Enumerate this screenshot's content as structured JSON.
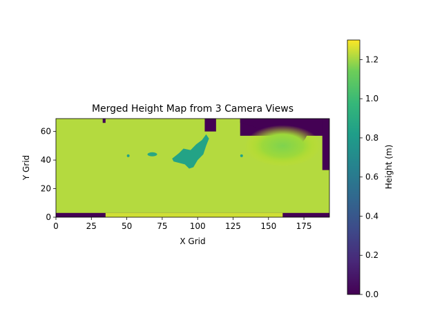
{
  "chart_data": {
    "type": "heatmap",
    "title": "Merged Height Map from 3 Camera Views",
    "xlabel": "X Grid",
    "ylabel": "Y Grid",
    "xlim": [
      0,
      193
    ],
    "ylim": [
      0,
      69
    ],
    "x_ticks": [
      0,
      25,
      50,
      75,
      100,
      125,
      150,
      175
    ],
    "y_ticks": [
      0,
      20,
      40,
      60
    ],
    "colorbar": {
      "label": "Height (m)",
      "colormap": "viridis",
      "vmin": 0.0,
      "vmax": 1.3,
      "ticks": [
        "0.0",
        "0.2",
        "0.4",
        "0.6",
        "0.8",
        "1.0",
        "1.2"
      ]
    },
    "regions": [
      {
        "name": "background",
        "height_m": 1.22
      },
      {
        "name": "bottom-strip",
        "x": [
          0,
          193
        ],
        "y": [
          0,
          3
        ],
        "height_m": 0.0
      },
      {
        "name": "bottom-strip-raised",
        "x": [
          35,
          160
        ],
        "y": [
          0,
          3
        ],
        "height_m": 1.25
      },
      {
        "name": "top-left-gap",
        "x": [
          33,
          35
        ],
        "y": [
          66,
          69
        ],
        "height_m": 0.0
      },
      {
        "name": "top-middle-gap",
        "x": [
          105,
          113
        ],
        "y": [
          60,
          69
        ],
        "height_m": 0.0
      },
      {
        "name": "top-right-gap",
        "x": [
          130,
          190
        ],
        "y": [
          57,
          69
        ],
        "height_m": 0.0
      },
      {
        "name": "right-edge-gap",
        "x": [
          188,
          193
        ],
        "y": [
          33,
          69
        ],
        "height_m": 0.0
      },
      {
        "name": "green-slope",
        "center": [
          160,
          50
        ],
        "height_m": 1.02
      },
      {
        "name": "teal-patch",
        "center": [
          98,
          40
        ],
        "height_m": 0.85
      },
      {
        "name": "small-patch-1",
        "center": [
          68,
          44
        ],
        "height_m": 0.88
      },
      {
        "name": "small-patch-2",
        "center": [
          51,
          43
        ],
        "height_m": 0.85
      },
      {
        "name": "small-patch-3",
        "center": [
          131,
          43
        ],
        "height_m": 0.85
      }
    ]
  }
}
